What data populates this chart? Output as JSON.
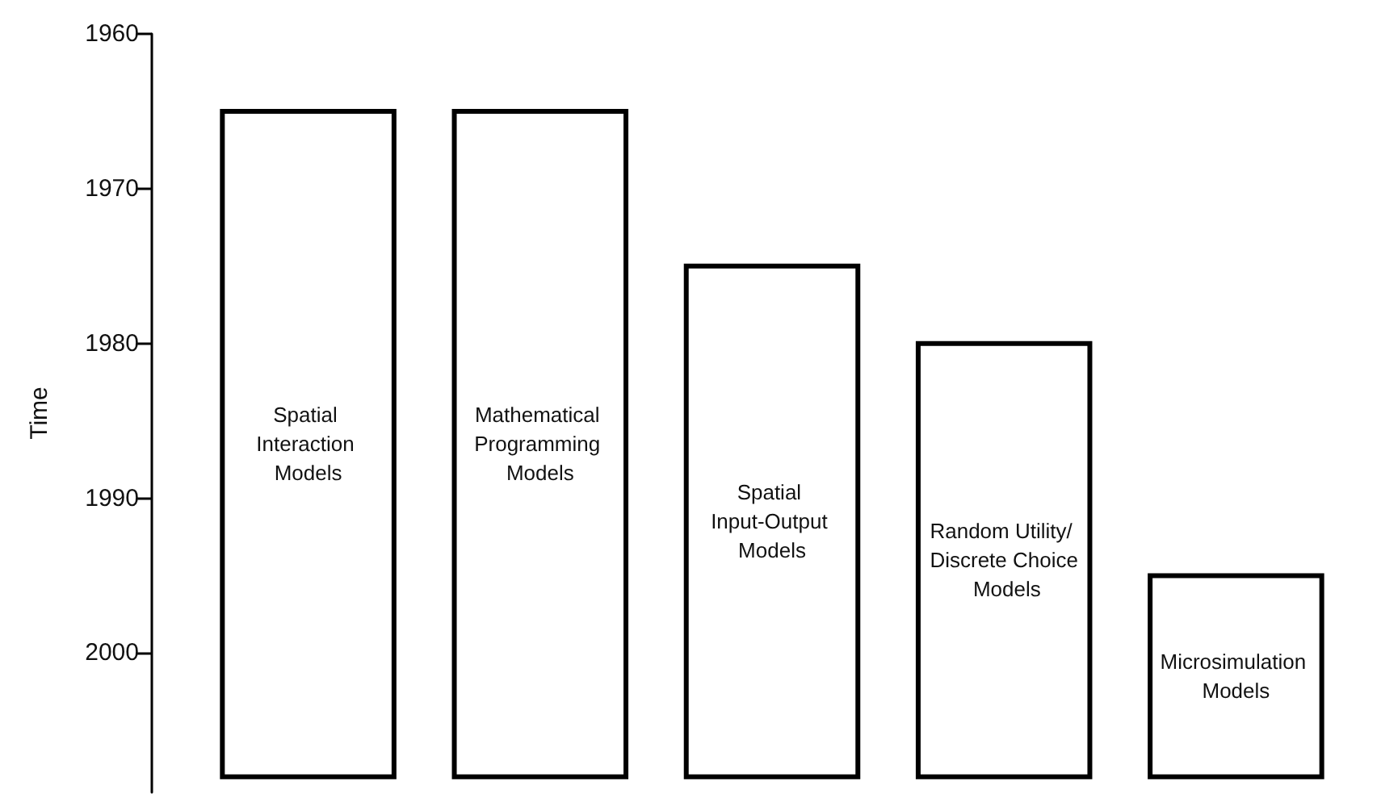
{
  "chart_data": {
    "type": "bar",
    "ylabel": "Time",
    "categories": [
      "Spatial Interaction Models",
      "Mathematical Programming Models",
      "Spatial Input-Output Models",
      "Random Utility/ Discrete Choice Models",
      "Microsimulation Models"
    ],
    "base": [
      1965,
      1965,
      1975,
      1980,
      1995
    ],
    "values": [
      43,
      43,
      33,
      28,
      13
    ],
    "color": "#ffffff",
    "ylim": [
      2009,
      1960
    ],
    "yticks": [
      1960,
      1970,
      1980,
      1990,
      2000
    ],
    "tick_labels": "y"
  }
}
